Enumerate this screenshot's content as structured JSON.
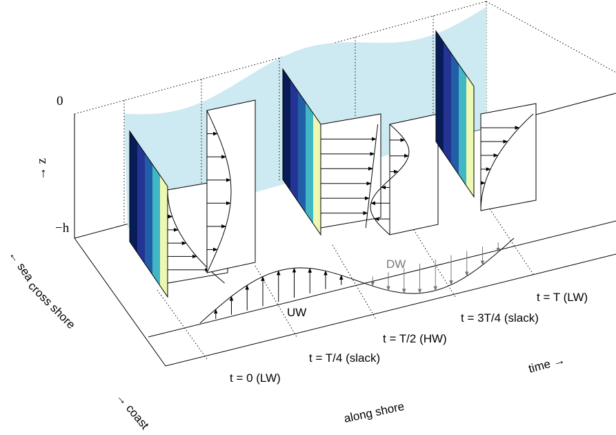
{
  "axes": {
    "surface": "0",
    "vertical": "→ z",
    "depth": "−h",
    "sea": "← sea",
    "cross_shore": "cross shore",
    "coast": "→ coast",
    "along_shore": "along shore",
    "time": "time →"
  },
  "phases": [
    "t = 0 (LW)",
    "t = T/4 (slack)",
    "t = T/2 (HW)",
    "t = 3T/4 (slack)",
    "t = T (LW)"
  ],
  "flows": {
    "upwelling": "UW",
    "downwelling": "DW"
  }
}
